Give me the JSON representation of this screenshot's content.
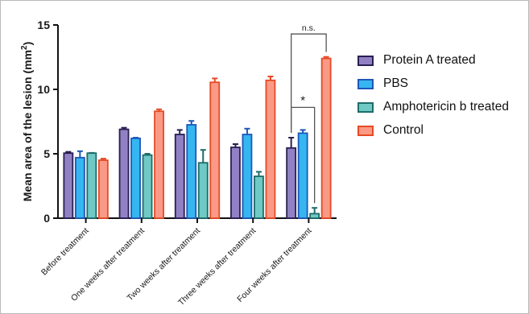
{
  "chart_data": {
    "type": "bar",
    "title": "",
    "xlabel": "",
    "ylabel": "Mean area of the lesion (mm",
    "ylabel_sup": "2",
    "ylabel_tail": ")",
    "ylim": [
      0,
      15
    ],
    "yticks": [
      "0",
      "5",
      "10",
      "15"
    ],
    "categories": [
      "Before treatment",
      "One weeks after treatment",
      "Two weeks after treatment",
      "Three weeks after treatment",
      "Four weeks after treatment"
    ],
    "series": [
      {
        "name": "Protein A treated",
        "fill": "#9181c4",
        "stroke": "#2a1f52",
        "values": [
          5.05,
          6.9,
          6.5,
          5.5,
          5.45
        ],
        "errors": [
          0.1,
          0.12,
          0.35,
          0.25,
          0.8
        ]
      },
      {
        "name": "PBS",
        "fill": "#35b6f0",
        "stroke": "#1f57b8",
        "values": [
          4.7,
          6.2,
          7.25,
          6.5,
          6.6
        ],
        "errors": [
          0.5,
          0.05,
          0.3,
          0.45,
          0.25
        ]
      },
      {
        "name": "Amphotericin b treated",
        "fill": "#6fcac6",
        "stroke": "#1e6c69",
        "values": [
          5.05,
          4.9,
          4.3,
          3.25,
          0.35
        ],
        "errors": [
          0.02,
          0.1,
          1.0,
          0.35,
          0.45
        ]
      },
      {
        "name": "Control",
        "fill": "#fa9a86",
        "stroke": "#e64a24",
        "values": [
          4.5,
          8.3,
          10.55,
          10.7,
          12.4
        ],
        "errors": [
          0.12,
          0.15,
          0.3,
          0.3,
          0.12
        ]
      }
    ],
    "annotations": [
      {
        "text": "*",
        "category": 4,
        "from_series": 0,
        "to_series": 2,
        "level": 8.6
      },
      {
        "text": "n.s.",
        "category": 4,
        "from_series": 0,
        "to_series": 3,
        "level": 14.3
      }
    ],
    "grid": false,
    "legend_position": "right"
  }
}
